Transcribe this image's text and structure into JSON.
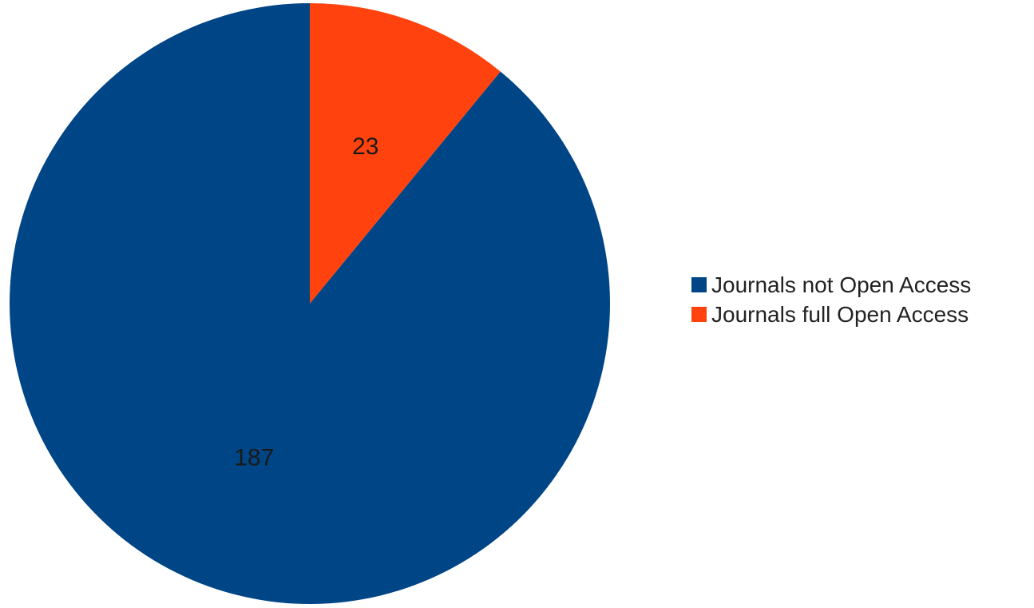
{
  "chart_data": {
    "type": "pie",
    "title": "",
    "series": [
      {
        "name": "Journals not Open Access",
        "value": 187,
        "color": "#004586",
        "label": "187"
      },
      {
        "name": "Journals full Open Access",
        "value": 23,
        "color": "#ff420e",
        "label": "23"
      }
    ],
    "start_angle_deg": 0,
    "direction": "counterclockwise",
    "legend_placement": "right"
  }
}
